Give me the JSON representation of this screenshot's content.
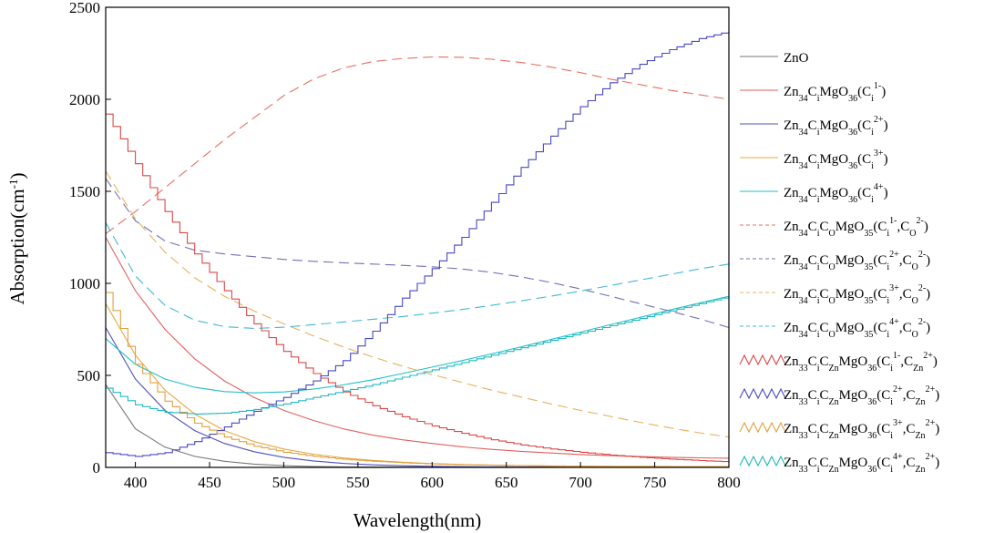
{
  "chart_data": {
    "type": "line",
    "xlabel": "Wavelength(nm)",
    "ylabel": "Absorption(cm-1)",
    "ylabel_parts": {
      "base": "Absorption(cm",
      "sup": "-1",
      "close": ")"
    },
    "xlim": [
      380,
      800
    ],
    "ylim": [
      0,
      2500
    ],
    "x_ticks": [
      400,
      450,
      500,
      550,
      600,
      650,
      700,
      750,
      800
    ],
    "y_ticks": [
      0,
      500,
      1000,
      1500,
      2000,
      2500
    ],
    "grid": false,
    "legend_position": "right",
    "x": [
      380,
      400,
      420,
      440,
      460,
      480,
      500,
      520,
      540,
      560,
      580,
      600,
      620,
      640,
      660,
      680,
      700,
      720,
      740,
      760,
      780,
      800
    ],
    "series": [
      {
        "name": "ZnO",
        "label_parts": [
          [
            "t",
            "ZnO"
          ]
        ],
        "color": "#777777",
        "style": "solid",
        "values": [
          450,
          210,
          110,
          60,
          33,
          18,
          10,
          5,
          3,
          2,
          1,
          1,
          0,
          0,
          0,
          0,
          0,
          0,
          0,
          0,
          0,
          0
        ]
      },
      {
        "name": "Zn34CiMgO36(Ci1-)",
        "label_parts": [
          [
            "t",
            "Zn"
          ],
          [
            "sub",
            "34"
          ],
          [
            "t",
            "C"
          ],
          [
            "sub",
            "i"
          ],
          [
            "t",
            "MgO"
          ],
          [
            "sub",
            "36"
          ],
          [
            "t",
            "(C"
          ],
          [
            "sub",
            "i"
          ],
          [
            "sup",
            "1-"
          ],
          [
            "t",
            ")"
          ]
        ],
        "color": "#e06060",
        "style": "solid",
        "values": [
          1250,
          960,
          750,
          590,
          470,
          380,
          310,
          255,
          210,
          175,
          150,
          130,
          112,
          98,
          87,
          78,
          70,
          64,
          59,
          55,
          52,
          50
        ]
      },
      {
        "name": "Zn34CiMgO36(Ci2+)",
        "label_parts": [
          [
            "t",
            "Zn"
          ],
          [
            "sub",
            "34"
          ],
          [
            "t",
            "C"
          ],
          [
            "sub",
            "i"
          ],
          [
            "t",
            "MgO"
          ],
          [
            "sub",
            "36"
          ],
          [
            "t",
            "(C"
          ],
          [
            "sub",
            "i"
          ],
          [
            "sup",
            "2+"
          ],
          [
            "t",
            ")"
          ]
        ],
        "color": "#5050bb",
        "style": "solid",
        "values": [
          760,
          480,
          310,
          200,
          130,
          85,
          55,
          35,
          22,
          14,
          9,
          6,
          4,
          3,
          2,
          2,
          1,
          1,
          1,
          1,
          1,
          1
        ]
      },
      {
        "name": "Zn34CiMgO36(Ci3+)",
        "label_parts": [
          [
            "t",
            "Zn"
          ],
          [
            "sub",
            "34"
          ],
          [
            "t",
            "C"
          ],
          [
            "sub",
            "i"
          ],
          [
            "t",
            "MgO"
          ],
          [
            "sub",
            "36"
          ],
          [
            "t",
            "(C"
          ],
          [
            "sub",
            "i"
          ],
          [
            "sup",
            "3+"
          ],
          [
            "t",
            ")"
          ]
        ],
        "color": "#e8a840",
        "style": "solid",
        "values": [
          890,
          610,
          420,
          290,
          200,
          140,
          100,
          72,
          52,
          38,
          28,
          21,
          16,
          12,
          9,
          7,
          6,
          5,
          4,
          3,
          3,
          2
        ]
      },
      {
        "name": "Zn34CiMgO36(Ci4+)",
        "label_parts": [
          [
            "t",
            "Zn"
          ],
          [
            "sub",
            "34"
          ],
          [
            "t",
            "C"
          ],
          [
            "sub",
            "i"
          ],
          [
            "t",
            "MgO"
          ],
          [
            "sub",
            "36"
          ],
          [
            "t",
            "(C"
          ],
          [
            "sub",
            "i"
          ],
          [
            "sup",
            "4+"
          ],
          [
            "t",
            ")"
          ]
        ],
        "color": "#20c0c8",
        "style": "solid",
        "values": [
          700,
          560,
          480,
          435,
          412,
          405,
          410,
          425,
          448,
          476,
          510,
          545,
          580,
          617,
          655,
          695,
          735,
          775,
          815,
          855,
          893,
          930
        ]
      },
      {
        "name": "Zn34CiCOMgO35(Ci1-,CO2-)",
        "label_parts": [
          [
            "t",
            "Zn"
          ],
          [
            "sub",
            "34"
          ],
          [
            "t",
            "C"
          ],
          [
            "sub",
            "i"
          ],
          [
            "t",
            "C"
          ],
          [
            "sub",
            "O"
          ],
          [
            "t",
            "MgO"
          ],
          [
            "sub",
            "35"
          ],
          [
            "t",
            "(C"
          ],
          [
            "sub",
            "i"
          ],
          [
            "sup",
            "1-"
          ],
          [
            "t",
            ",C"
          ],
          [
            "sub",
            "O"
          ],
          [
            "sup",
            "2-"
          ],
          [
            "t",
            ")"
          ]
        ],
        "color": "#e87060",
        "style": "dashed",
        "values": [
          1270,
          1390,
          1520,
          1650,
          1780,
          1900,
          2020,
          2110,
          2170,
          2205,
          2222,
          2230,
          2228,
          2218,
          2200,
          2175,
          2145,
          2110,
          2080,
          2050,
          2025,
          2000
        ]
      },
      {
        "name": "Zn34CiCOMgO35(Ci2+,CO2-)",
        "label_parts": [
          [
            "t",
            "Zn"
          ],
          [
            "sub",
            "34"
          ],
          [
            "t",
            "C"
          ],
          [
            "sub",
            "i"
          ],
          [
            "t",
            "C"
          ],
          [
            "sub",
            "O"
          ],
          [
            "t",
            "MgO"
          ],
          [
            "sub",
            "35"
          ],
          [
            "t",
            "(C"
          ],
          [
            "sub",
            "i"
          ],
          [
            "sup",
            "2+"
          ],
          [
            "t",
            ",C"
          ],
          [
            "sub",
            "O"
          ],
          [
            "sup",
            "2-"
          ],
          [
            "t",
            ")"
          ]
        ],
        "color": "#7070b8",
        "style": "dashed",
        "values": [
          1570,
          1340,
          1230,
          1180,
          1160,
          1145,
          1130,
          1120,
          1112,
          1105,
          1098,
          1090,
          1078,
          1060,
          1035,
          1005,
          970,
          930,
          890,
          850,
          808,
          760
        ]
      },
      {
        "name": "Zn34CiCOMgO35(Ci3+,CO2-)",
        "label_parts": [
          [
            "t",
            "Zn"
          ],
          [
            "sub",
            "34"
          ],
          [
            "t",
            "C"
          ],
          [
            "sub",
            "i"
          ],
          [
            "t",
            "C"
          ],
          [
            "sub",
            "O"
          ],
          [
            "t",
            "MgO"
          ],
          [
            "sub",
            "35"
          ],
          [
            "t",
            "(C"
          ],
          [
            "sub",
            "i"
          ],
          [
            "sup",
            "3+"
          ],
          [
            "t",
            ",C"
          ],
          [
            "sub",
            "O"
          ],
          [
            "sup",
            "2-"
          ],
          [
            "t",
            ")"
          ]
        ],
        "color": "#e8b060",
        "style": "dashed",
        "values": [
          1610,
          1350,
          1170,
          1030,
          930,
          850,
          780,
          715,
          655,
          600,
          550,
          505,
          462,
          420,
          382,
          345,
          310,
          277,
          245,
          215,
          188,
          165
        ]
      },
      {
        "name": "Zn34CiCOMgO35(Ci4+,CO2-)",
        "label_parts": [
          [
            "t",
            "Zn"
          ],
          [
            "sub",
            "34"
          ],
          [
            "t",
            "C"
          ],
          [
            "sub",
            "i"
          ],
          [
            "t",
            "C"
          ],
          [
            "sub",
            "O"
          ],
          [
            "t",
            "MgO"
          ],
          [
            "sub",
            "35"
          ],
          [
            "t",
            "(C"
          ],
          [
            "sub",
            "i"
          ],
          [
            "sup",
            "4+"
          ],
          [
            "t",
            ",C"
          ],
          [
            "sub",
            "O"
          ],
          [
            "sup",
            "2-"
          ],
          [
            "t",
            ")"
          ]
        ],
        "color": "#40b8d8",
        "style": "dashed",
        "values": [
          1330,
          1040,
          880,
          800,
          765,
          755,
          762,
          775,
          790,
          805,
          820,
          838,
          858,
          880,
          905,
          930,
          958,
          988,
          1018,
          1048,
          1078,
          1105
        ]
      },
      {
        "name": "Zn33CiCZnMgO36(Ci1-,CZn2+)",
        "label_parts": [
          [
            "t",
            "Zn"
          ],
          [
            "sub",
            "33"
          ],
          [
            "t",
            "C"
          ],
          [
            "sub",
            "i"
          ],
          [
            "t",
            "C"
          ],
          [
            "sub",
            "Zn"
          ],
          [
            "t",
            "MgO"
          ],
          [
            "sub",
            "36"
          ],
          [
            "t",
            "(C"
          ],
          [
            "sub",
            "i"
          ],
          [
            "sup",
            "1-"
          ],
          [
            "t",
            ",C"
          ],
          [
            "sub",
            "Zn"
          ],
          [
            "sup",
            "2+"
          ],
          [
            "t",
            ")"
          ]
        ],
        "color": "#d84848",
        "style": "step",
        "values": [
          1920,
          1650,
          1390,
          1160,
          960,
          780,
          630,
          510,
          410,
          335,
          275,
          225,
          185,
          150,
          122,
          100,
          82,
          67,
          55,
          45,
          37,
          30
        ]
      },
      {
        "name": "Zn33CiCZnMgO36(Ci2+,CZn2+)",
        "label_parts": [
          [
            "t",
            "Zn"
          ],
          [
            "sub",
            "33"
          ],
          [
            "t",
            "C"
          ],
          [
            "sub",
            "i"
          ],
          [
            "t",
            "C"
          ],
          [
            "sub",
            "Zn"
          ],
          [
            "t",
            "MgO"
          ],
          [
            "sub",
            "36"
          ],
          [
            "t",
            "(C"
          ],
          [
            "sub",
            "i"
          ],
          [
            "sup",
            "2+"
          ],
          [
            "t",
            ",C"
          ],
          [
            "sub",
            "Zn"
          ],
          [
            "sup",
            "2+"
          ],
          [
            "t",
            ")"
          ]
        ],
        "color": "#4848c0",
        "style": "step",
        "values": [
          80,
          60,
          80,
          140,
          220,
          305,
          380,
          470,
          580,
          740,
          920,
          1080,
          1250,
          1440,
          1630,
          1800,
          1960,
          2090,
          2190,
          2270,
          2330,
          2370
        ]
      },
      {
        "name": "Zn33CiCZnMgO36(Ci3+,CZn2+)",
        "label_parts": [
          [
            "t",
            "Zn"
          ],
          [
            "sub",
            "33"
          ],
          [
            "t",
            "C"
          ],
          [
            "sub",
            "i"
          ],
          [
            "t",
            "C"
          ],
          [
            "sub",
            "Zn"
          ],
          [
            "t",
            "MgO"
          ],
          [
            "sub",
            "36"
          ],
          [
            "t",
            "(C"
          ],
          [
            "sub",
            "i"
          ],
          [
            "sup",
            "3+"
          ],
          [
            "t",
            ",C"
          ],
          [
            "sub",
            "Zn"
          ],
          [
            "sup",
            "2+"
          ],
          [
            "t",
            ")"
          ]
        ],
        "color": "#e0a040",
        "style": "step",
        "values": [
          950,
          560,
          360,
          240,
          165,
          115,
          82,
          60,
          44,
          33,
          25,
          19,
          15,
          12,
          10,
          8,
          7,
          6,
          6,
          5,
          5,
          5
        ]
      },
      {
        "name": "Zn33CiCZnMgO36(Ci4+,CZn2+)",
        "label_parts": [
          [
            "t",
            "Zn"
          ],
          [
            "sub",
            "33"
          ],
          [
            "t",
            "C"
          ],
          [
            "sub",
            "i"
          ],
          [
            "t",
            "C"
          ],
          [
            "sub",
            "Zn"
          ],
          [
            "t",
            "MgO"
          ],
          [
            "sub",
            "36"
          ],
          [
            "t",
            "(C"
          ],
          [
            "sub",
            "i"
          ],
          [
            "sup",
            "4+"
          ],
          [
            "t",
            ",C"
          ],
          [
            "sub",
            "Zn"
          ],
          [
            "sup",
            "2+"
          ],
          [
            "t",
            ")"
          ]
        ],
        "color": "#20b8c0",
        "style": "step",
        "values": [
          430,
          340,
          300,
          290,
          295,
          315,
          345,
          380,
          415,
          450,
          490,
          530,
          570,
          610,
          650,
          690,
          730,
          770,
          810,
          850,
          890,
          930
        ]
      }
    ]
  }
}
